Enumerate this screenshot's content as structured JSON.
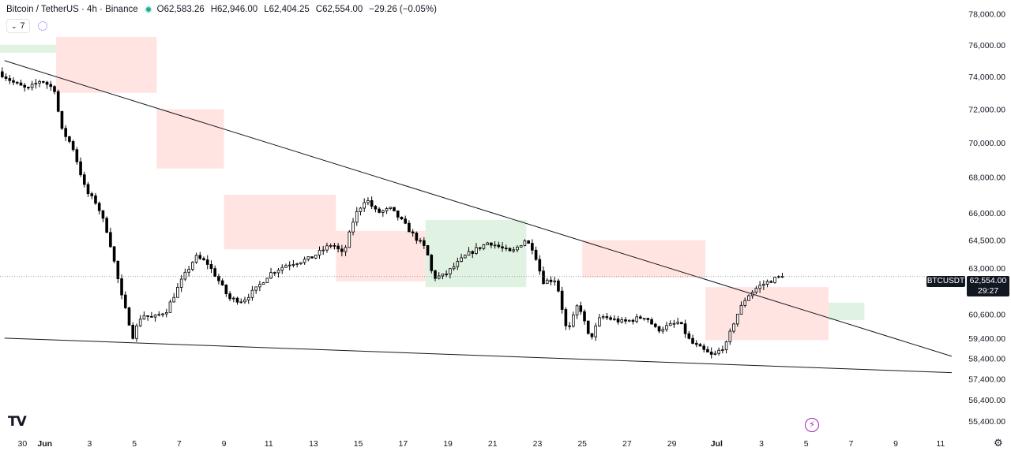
{
  "header": {
    "title": "Bitcoin / TetherUS · 4h · Binance",
    "open": "O62,583.26",
    "high": "H62,946.00",
    "low": "L62,404.25",
    "close": "C62,554.00",
    "change": "−29.26 (−0.05%)"
  },
  "indicators": {
    "count": "7"
  },
  "price_label": {
    "symbol": "BTCUSDT",
    "price": "62,554.00",
    "countdown": "29:27"
  },
  "colors": {
    "up": "#000000",
    "down": "#000000",
    "cloud_bear": "#ffe4e1",
    "cloud_bull": "#e0f2e1",
    "last_price_line": "#888888",
    "trendline": "#131722"
  },
  "chart_data": {
    "type": "candlestick",
    "title": "Bitcoin / TetherUS · 4h · Binance",
    "y_axis": {
      "scale": "log",
      "ylim": [
        55000,
        78500
      ],
      "ticks": [
        {
          "value": 78000,
          "label": "78,000.00"
        },
        {
          "value": 76000,
          "label": "76,000.00"
        },
        {
          "value": 74000,
          "label": "74,000.00"
        },
        {
          "value": 72000,
          "label": "72,000.00"
        },
        {
          "value": 70000,
          "label": "70,000.00"
        },
        {
          "value": 68000,
          "label": "68,000.00"
        },
        {
          "value": 66000,
          "label": "66,000.00"
        },
        {
          "value": 64500,
          "label": "64,500.00"
        },
        {
          "value": 63000,
          "label": "63,000.00"
        },
        {
          "value": 60600,
          "label": "60,600.00"
        },
        {
          "value": 59400,
          "label": "59,400.00"
        },
        {
          "value": 58400,
          "label": "58,400.00"
        },
        {
          "value": 57400,
          "label": "57,400.00"
        },
        {
          "value": 56400,
          "label": "56,400.00"
        },
        {
          "value": 55400,
          "label": "55,400.00"
        }
      ]
    },
    "x_axis": {
      "ticks": [
        {
          "day": -1,
          "label": "30",
          "bold": false
        },
        {
          "day": 0,
          "label": "Jun",
          "bold": true
        },
        {
          "day": 2,
          "label": "3",
          "bold": false
        },
        {
          "day": 4,
          "label": "5",
          "bold": false
        },
        {
          "day": 6,
          "label": "7",
          "bold": false
        },
        {
          "day": 8,
          "label": "9",
          "bold": false
        },
        {
          "day": 10,
          "label": "11",
          "bold": false
        },
        {
          "day": 12,
          "label": "13",
          "bold": false
        },
        {
          "day": 14,
          "label": "15",
          "bold": false
        },
        {
          "day": 16,
          "label": "17",
          "bold": false
        },
        {
          "day": 18,
          "label": "19",
          "bold": false
        },
        {
          "day": 20,
          "label": "21",
          "bold": false
        },
        {
          "day": 22,
          "label": "23",
          "bold": false
        },
        {
          "day": 24,
          "label": "25",
          "bold": false
        },
        {
          "day": 26,
          "label": "27",
          "bold": false
        },
        {
          "day": 28,
          "label": "29",
          "bold": false
        },
        {
          "day": 30,
          "label": "Jul",
          "bold": true
        },
        {
          "day": 32,
          "label": "3",
          "bold": false
        },
        {
          "day": 34,
          "label": "5",
          "bold": false
        },
        {
          "day": 36,
          "label": "7",
          "bold": false
        },
        {
          "day": 38,
          "label": "9",
          "bold": false
        },
        {
          "day": 40,
          "label": "11",
          "bold": false
        }
      ],
      "range_days": [
        -2.0,
        41.1
      ]
    },
    "last_price": 62554,
    "price_path": [
      {
        "day": -1.9,
        "price": 74300
      },
      {
        "day": -1.2,
        "price": 73600
      },
      {
        "day": -0.6,
        "price": 73200
      },
      {
        "day": 0.0,
        "price": 73800
      },
      {
        "day": 0.6,
        "price": 73200
      },
      {
        "day": 0.9,
        "price": 70800
      },
      {
        "day": 1.4,
        "price": 69800
      },
      {
        "day": 2.0,
        "price": 67200
      },
      {
        "day": 2.5,
        "price": 66500
      },
      {
        "day": 3.0,
        "price": 64800
      },
      {
        "day": 3.6,
        "price": 61500
      },
      {
        "day": 4.1,
        "price": 59500
      },
      {
        "day": 4.5,
        "price": 60600
      },
      {
        "day": 5.0,
        "price": 60400
      },
      {
        "day": 5.6,
        "price": 60800
      },
      {
        "day": 6.3,
        "price": 62400
      },
      {
        "day": 6.9,
        "price": 63600
      },
      {
        "day": 7.4,
        "price": 63300
      },
      {
        "day": 7.9,
        "price": 62400
      },
      {
        "day": 8.4,
        "price": 61400
      },
      {
        "day": 9.0,
        "price": 61300
      },
      {
        "day": 9.6,
        "price": 61900
      },
      {
        "day": 10.2,
        "price": 62700
      },
      {
        "day": 11.0,
        "price": 63200
      },
      {
        "day": 12.0,
        "price": 63500
      },
      {
        "day": 13.0,
        "price": 64300
      },
      {
        "day": 13.5,
        "price": 63700
      },
      {
        "day": 14.0,
        "price": 65800
      },
      {
        "day": 14.5,
        "price": 66800
      },
      {
        "day": 15.0,
        "price": 66000
      },
      {
        "day": 15.6,
        "price": 66200
      },
      {
        "day": 16.0,
        "price": 65700
      },
      {
        "day": 16.6,
        "price": 64800
      },
      {
        "day": 17.2,
        "price": 64000
      },
      {
        "day": 17.5,
        "price": 62500
      },
      {
        "day": 18.0,
        "price": 62600
      },
      {
        "day": 19.0,
        "price": 63700
      },
      {
        "day": 20.0,
        "price": 64400
      },
      {
        "day": 21.0,
        "price": 63800
      },
      {
        "day": 21.6,
        "price": 64500
      },
      {
        "day": 22.0,
        "price": 64000
      },
      {
        "day": 22.4,
        "price": 62300
      },
      {
        "day": 23.0,
        "price": 62400
      },
      {
        "day": 23.5,
        "price": 59600
      },
      {
        "day": 24.0,
        "price": 61200
      },
      {
        "day": 24.5,
        "price": 59300
      },
      {
        "day": 25.0,
        "price": 60500
      },
      {
        "day": 26.0,
        "price": 60200
      },
      {
        "day": 27.0,
        "price": 60500
      },
      {
        "day": 27.5,
        "price": 59800
      },
      {
        "day": 28.5,
        "price": 60200
      },
      {
        "day": 29.0,
        "price": 59200
      },
      {
        "day": 30.0,
        "price": 58500
      },
      {
        "day": 30.6,
        "price": 59100
      },
      {
        "day": 31.0,
        "price": 60400
      },
      {
        "day": 31.5,
        "price": 61500
      },
      {
        "day": 32.0,
        "price": 62000
      },
      {
        "day": 32.5,
        "price": 62300
      },
      {
        "day": 33.0,
        "price": 62554
      }
    ],
    "trendlines": [
      {
        "name": "upper",
        "from": {
          "day": -1.8,
          "price": 75000
        },
        "to": {
          "day": 40.5,
          "price": 58500
        }
      },
      {
        "name": "lower",
        "from": {
          "day": -1.8,
          "price": 59400
        },
        "to": {
          "day": 40.5,
          "price": 57700
        }
      }
    ],
    "ichimoku_cloud": {
      "bearish": [
        {
          "from_day": 0.5,
          "to_day": 5.0,
          "top": 76500,
          "bottom": 73000
        },
        {
          "from_day": 5.0,
          "to_day": 8.0,
          "top": 72000,
          "bottom": 68500
        },
        {
          "from_day": 8.0,
          "to_day": 13.0,
          "top": 67000,
          "bottom": 64000
        },
        {
          "from_day": 13.0,
          "to_day": 17.0,
          "top": 65000,
          "bottom": 62300
        },
        {
          "from_day": 24.0,
          "to_day": 29.5,
          "top": 64500,
          "bottom": 62500
        },
        {
          "from_day": 29.5,
          "to_day": 35.0,
          "top": 62000,
          "bottom": 59300
        }
      ],
      "bullish": [
        {
          "from_day": -2.0,
          "to_day": 0.5,
          "top": 76000,
          "bottom": 75500
        },
        {
          "from_day": 17.0,
          "to_day": 21.5,
          "top": 65600,
          "bottom": 62000
        },
        {
          "from_day": 35.0,
          "to_day": 36.6,
          "top": 61200,
          "bottom": 60300
        }
      ]
    }
  }
}
